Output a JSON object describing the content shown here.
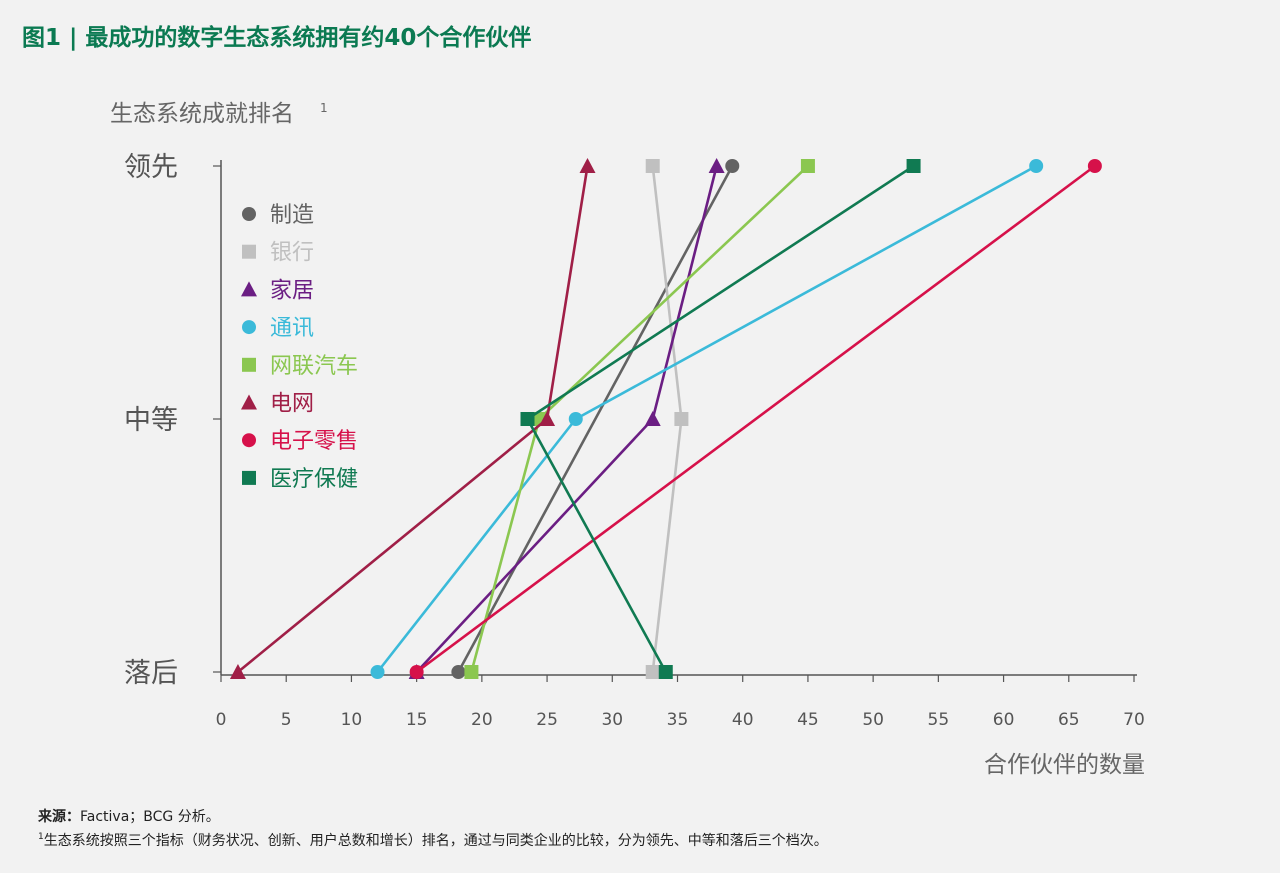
{
  "title": "图1 | 最成功的数字生态系统拥有约40个合作伙伴",
  "source": {
    "label": "来源：",
    "text": "Factiva；BCG 分析。"
  },
  "footnote": {
    "marker": "1",
    "text": "生态系统按照三个指标（财务状况、创新、用户总数和增长）排名，通过与同类企业的比较，分为领先、中等和落后三个档次。"
  },
  "chart_data": {
    "type": "line",
    "ylabel": "生态系统成就排名",
    "ylabel_sup": "1",
    "xlabel": "合作伙伴的数量",
    "xlim": [
      0,
      70
    ],
    "x_ticks": [
      0,
      5,
      10,
      15,
      20,
      25,
      30,
      35,
      40,
      45,
      50,
      55,
      60,
      65,
      70
    ],
    "y_categories": [
      "落后",
      "中等",
      "领先"
    ],
    "legend_position": "top-left",
    "grid": false,
    "series": [
      {
        "name": "制造",
        "marker": "circle",
        "color": "#636363",
        "points": [
          [
            18.2,
            "落后"
          ],
          [
            39.2,
            "领先"
          ]
        ]
      },
      {
        "name": "银行",
        "marker": "square",
        "color": "#c0c0c0",
        "points": [
          [
            33.1,
            "落后"
          ],
          [
            35.3,
            "中等"
          ],
          [
            33.1,
            "领先"
          ]
        ]
      },
      {
        "name": "家居",
        "marker": "triangle",
        "color": "#6b1e83",
        "points": [
          [
            15.0,
            "落后"
          ],
          [
            33.1,
            "中等"
          ],
          [
            38.0,
            "领先"
          ]
        ]
      },
      {
        "name": "通讯",
        "marker": "circle",
        "color": "#3bbad9",
        "points": [
          [
            12.0,
            "落后"
          ],
          [
            27.2,
            "中等"
          ],
          [
            62.5,
            "领先"
          ]
        ]
      },
      {
        "name": "网联汽车",
        "marker": "square",
        "color": "#8bc750",
        "points": [
          [
            19.2,
            "落后"
          ],
          [
            24.4,
            "中等"
          ],
          [
            45.0,
            "领先"
          ]
        ]
      },
      {
        "name": "电网",
        "marker": "triangle",
        "color": "#a01f47",
        "points": [
          [
            1.3,
            "落后"
          ],
          [
            25.0,
            "中等"
          ],
          [
            28.1,
            "领先"
          ]
        ]
      },
      {
        "name": "电子零售",
        "marker": "circle",
        "color": "#d6114a",
        "points": [
          [
            15.0,
            "落后"
          ],
          [
            67.0,
            "领先"
          ]
        ]
      },
      {
        "name": "医疗保健",
        "marker": "square",
        "color": "#107a52",
        "points": [
          [
            34.1,
            "落后"
          ],
          [
            23.5,
            "中等"
          ],
          [
            53.1,
            "领先"
          ]
        ]
      }
    ]
  }
}
